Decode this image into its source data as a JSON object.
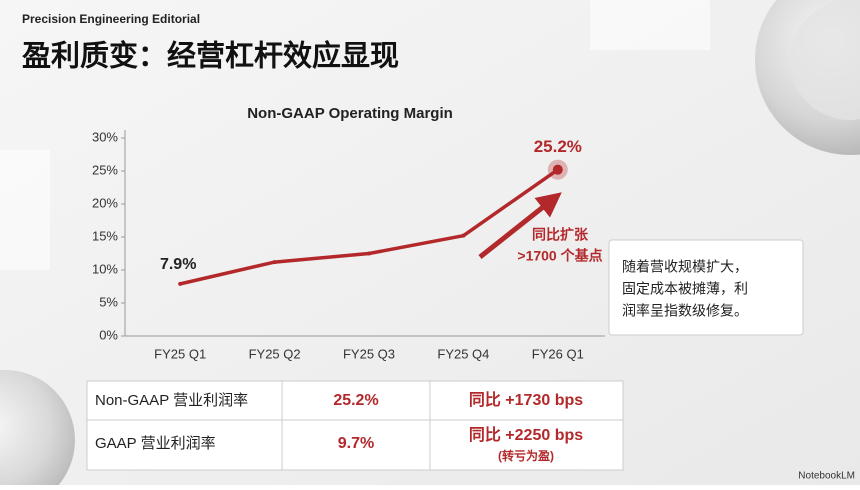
{
  "header": {
    "brand": "Precision Engineering Editorial",
    "title": "盈利质变：经营杠杆效应显现"
  },
  "chart_data": {
    "type": "line",
    "title": "Non-GAAP Operating Margin",
    "categories": [
      "FY25 Q1",
      "FY25 Q2",
      "FY25 Q3",
      "FY25 Q4",
      "FY26 Q1"
    ],
    "series": [
      {
        "name": "Non-GAAP Operating Margin",
        "color": "#b3292b",
        "values": [
          7.9,
          11.2,
          12.5,
          15.2,
          25.2
        ],
        "value_labels": [
          "7.9%",
          null,
          null,
          null,
          "25.2%"
        ]
      }
    ],
    "ylim": [
      0,
      30
    ],
    "yticks": [
      {
        "value": 0,
        "label": "0%"
      },
      {
        "value": 5,
        "label": "5%"
      },
      {
        "value": 10,
        "label": "10%"
      },
      {
        "value": 15,
        "label": "15%"
      },
      {
        "value": 20,
        "label": "20%"
      },
      {
        "value": 25,
        "label": "25%"
      },
      {
        "value": 30,
        "label": "30%"
      }
    ],
    "grid": false,
    "annotation": [
      "同比扩张",
      ">1700 个基点"
    ]
  },
  "note": [
    "随着营收规模扩大，",
    "固定成本被摊薄，利",
    "润率呈指数级修复。"
  ],
  "table": {
    "rows": [
      {
        "label": "Non-GAAP 营业利润率",
        "value": "25.2%",
        "change": "同比 +1730 bps"
      },
      {
        "label": "GAAP 营业利润率",
        "value": "9.7%",
        "change": "同比 +2250 bps",
        "note": "(转亏为盈)"
      }
    ]
  },
  "watermark": "NotebookLM"
}
